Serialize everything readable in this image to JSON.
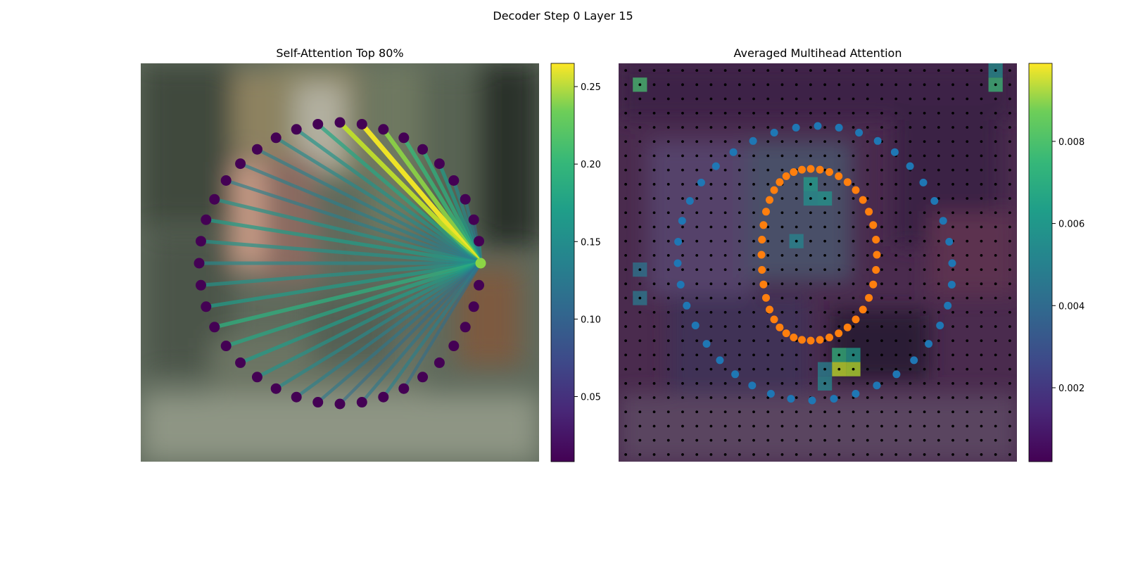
{
  "suptitle": "Decoder Step 0 Layer 15",
  "chart_data": [
    {
      "type": "network",
      "title": "Self-Attention Top 80%",
      "node_count": 40,
      "query_node_index": 0,
      "colormap": "viridis",
      "colorbar": {
        "range": [
          0.008,
          0.265
        ],
        "ticks": [
          0.05,
          0.1,
          0.15,
          0.2,
          0.25
        ],
        "tick_labels": [
          "0.05",
          "0.10",
          "0.15",
          "0.20",
          "0.25"
        ]
      },
      "query_node_value": 0.22,
      "edges_from_query": [
        {
          "to": 1,
          "w": 0.14
        },
        {
          "to": 2,
          "w": 0.1
        },
        {
          "to": 3,
          "w": 0.12
        },
        {
          "to": 4,
          "w": 0.13
        },
        {
          "to": 5,
          "w": 0.15
        },
        {
          "to": 6,
          "w": 0.17
        },
        {
          "to": 7,
          "w": 0.18
        },
        {
          "to": 8,
          "w": 0.22
        },
        {
          "to": 9,
          "w": 0.26
        },
        {
          "to": 10,
          "w": 0.24
        },
        {
          "to": 11,
          "w": 0.16
        },
        {
          "to": 12,
          "w": 0.14
        },
        {
          "to": 13,
          "w": 0.13
        },
        {
          "to": 14,
          "w": 0.12
        },
        {
          "to": 15,
          "w": 0.12
        },
        {
          "to": 16,
          "w": 0.12
        },
        {
          "to": 17,
          "w": 0.14
        },
        {
          "to": 18,
          "w": 0.15
        },
        {
          "to": 19,
          "w": 0.14
        },
        {
          "to": 20,
          "w": 0.13
        },
        {
          "to": 21,
          "w": 0.14
        },
        {
          "to": 22,
          "w": 0.15
        },
        {
          "to": 23,
          "w": 0.17
        },
        {
          "to": 24,
          "w": 0.16
        },
        {
          "to": 25,
          "w": 0.15
        },
        {
          "to": 26,
          "w": 0.14
        },
        {
          "to": 27,
          "w": 0.13
        },
        {
          "to": 28,
          "w": 0.12
        },
        {
          "to": 29,
          "w": 0.11
        },
        {
          "to": 30,
          "w": 0.1
        },
        {
          "to": 31,
          "w": 0.11
        },
        {
          "to": 32,
          "w": 0.12
        },
        {
          "to": 33,
          "w": 0.1
        }
      ]
    },
    {
      "type": "heatmap",
      "title": "Averaged Multihead Attention",
      "grid_size": 28,
      "colormap": "viridis",
      "colorbar": {
        "range": [
          0.0002,
          0.0099
        ],
        "ticks": [
          0.002,
          0.004,
          0.006,
          0.008
        ],
        "tick_labels": [
          "0.002",
          "0.004",
          "0.006",
          "0.008"
        ]
      },
      "highlight_cells": [
        {
          "row": 1,
          "col": 1,
          "v": 0.007
        },
        {
          "row": 1,
          "col": 26,
          "v": 0.0068
        },
        {
          "row": 0,
          "col": 26,
          "v": 0.005
        },
        {
          "row": 21,
          "col": 15,
          "v": 0.009
        },
        {
          "row": 21,
          "col": 16,
          "v": 0.0088
        },
        {
          "row": 20,
          "col": 15,
          "v": 0.0065
        },
        {
          "row": 20,
          "col": 16,
          "v": 0.0055
        },
        {
          "row": 22,
          "col": 14,
          "v": 0.0048
        },
        {
          "row": 21,
          "col": 14,
          "v": 0.0045
        },
        {
          "row": 8,
          "col": 13,
          "v": 0.0055
        },
        {
          "row": 9,
          "col": 14,
          "v": 0.0052
        },
        {
          "row": 9,
          "col": 13,
          "v": 0.005
        },
        {
          "row": 12,
          "col": 12,
          "v": 0.0046
        },
        {
          "row": 16,
          "col": 1,
          "v": 0.0042
        },
        {
          "row": 14,
          "col": 1,
          "v": 0.004
        }
      ],
      "point_sets": [
        {
          "set": "outer-ring",
          "color": "#1f77b4",
          "count": 40
        },
        {
          "set": "inner-ring",
          "color": "#ff7f0e",
          "count": 40
        }
      ]
    }
  ]
}
